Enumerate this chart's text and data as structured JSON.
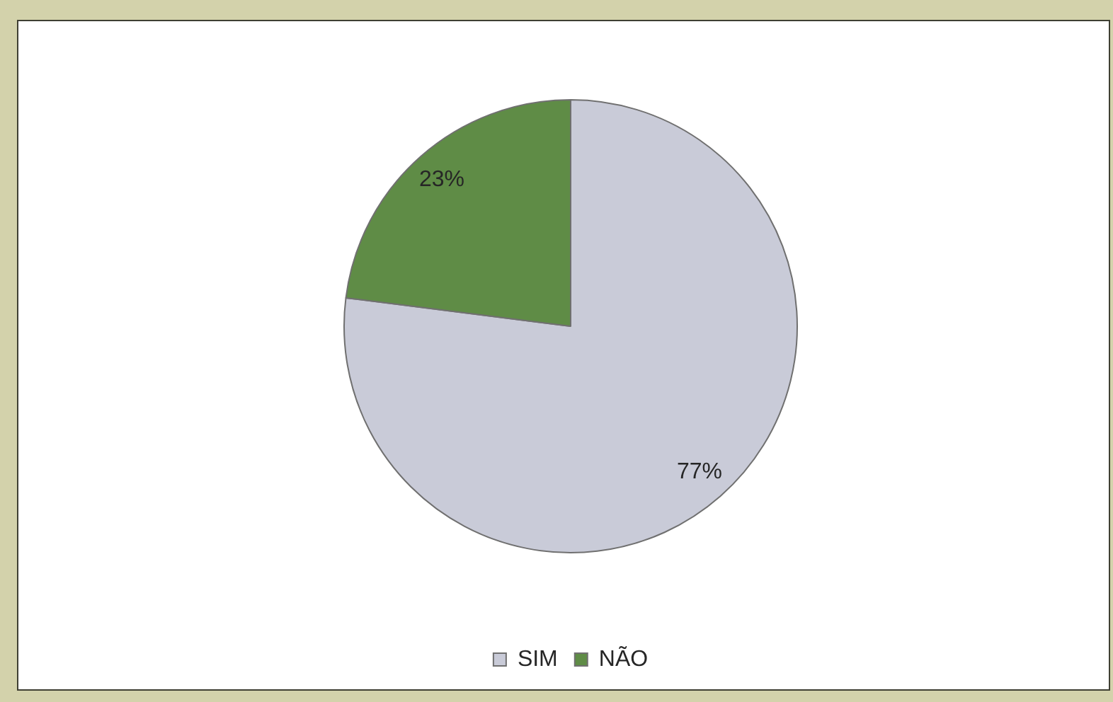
{
  "chart_data": {
    "type": "pie",
    "categories": [
      "SIM",
      "NÃO"
    ],
    "values": [
      77,
      23
    ],
    "colors": [
      "#c9cbd8",
      "#5f8c46"
    ],
    "value_labels": [
      "77%",
      "23%"
    ],
    "legend": "bottom"
  }
}
